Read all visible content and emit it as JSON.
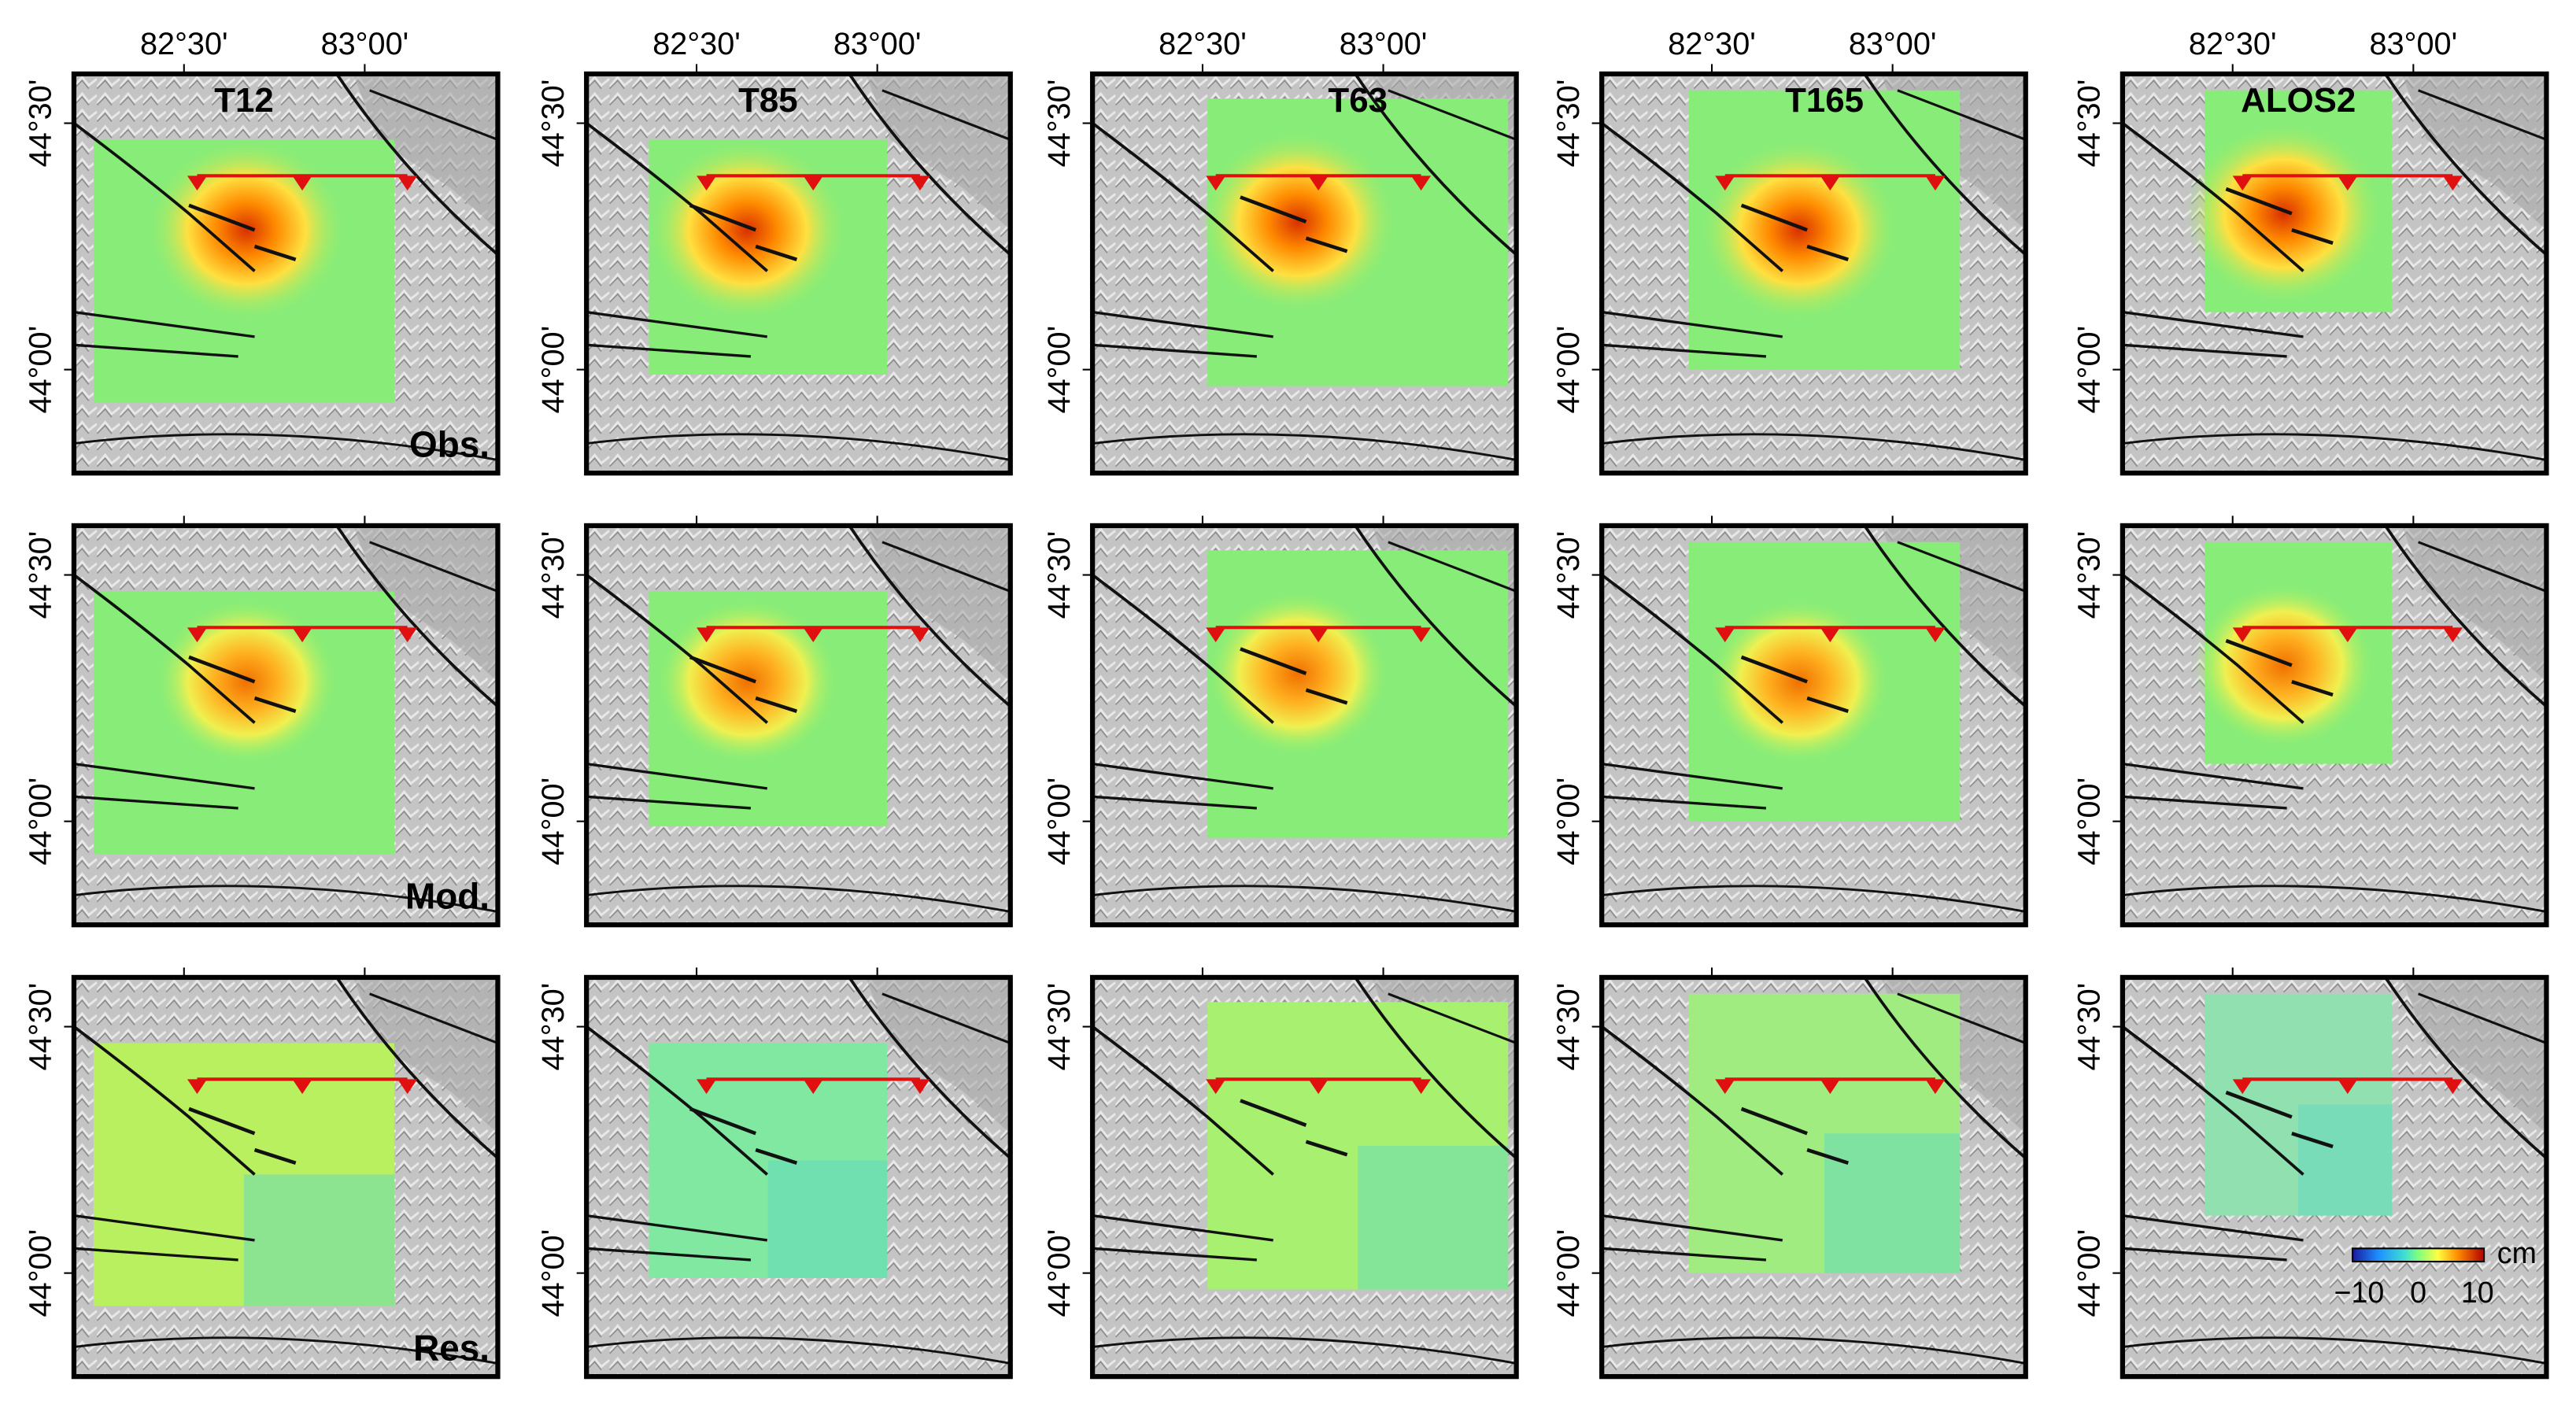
{
  "columns": [
    "T12",
    "T85",
    "T63",
    "T165",
    "ALOS2"
  ],
  "rows": [
    "Obs.",
    "Mod.",
    "Res."
  ],
  "lon_labels": [
    "82°30'",
    "83°00'"
  ],
  "lat_labels": [
    "44°30'",
    "44°00'"
  ],
  "colorbar": {
    "unit": "cm",
    "ticks": [
      "−10",
      "0",
      "10"
    ]
  }
}
